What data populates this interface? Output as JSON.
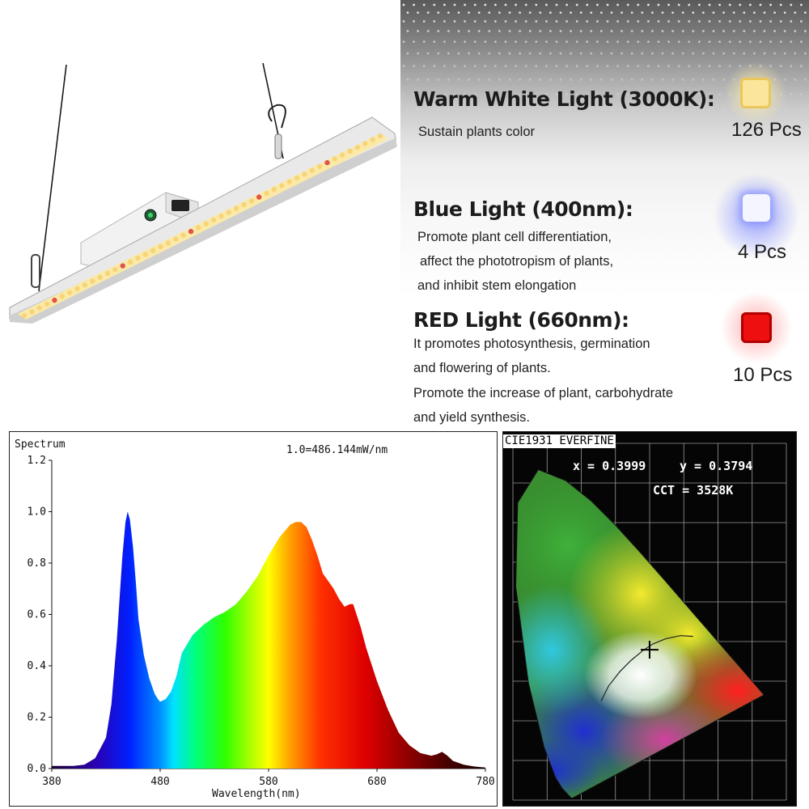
{
  "led_info": {
    "warm": {
      "title": "Warm White Light (3000K):",
      "desc": [
        "Sustain plants color"
      ],
      "count": "126 Pcs",
      "color": "#f7e08a"
    },
    "blue": {
      "title": "Blue Light (400nm):",
      "desc": [
        "Promote plant cell differentiation,",
        "affect the phototropism of plants,",
        "and inhibit stem elongation"
      ],
      "count": "4 Pcs",
      "color": "#e8ecff"
    },
    "red": {
      "title": "RED Light (660nm):",
      "desc": [
        "It promotes photosynthesis, germination",
        "and flowering of plants.",
        "Promote the increase of plant, carbohydrate",
        "and yield synthesis."
      ],
      "count": "10 Pcs",
      "color": "#ee1010"
    }
  },
  "chart_data": [
    {
      "type": "area",
      "title": "Spectrum",
      "annotation": "1.0=486.144mW/nm",
      "xlabel": "Wavelength(nm)",
      "ylabel": "",
      "xlim": [
        380,
        780
      ],
      "ylim": [
        0,
        1.2
      ],
      "x_ticks": [
        "380",
        "480",
        "580",
        "680",
        "780"
      ],
      "y_ticks": [
        "0.0",
        "0.2",
        "0.4",
        "0.6",
        "0.8",
        "1.0",
        "1.2"
      ],
      "fill": "visible-spectrum gradient",
      "grid": false,
      "x": [
        380,
        390,
        400,
        410,
        420,
        430,
        435,
        440,
        445,
        448,
        450,
        452,
        455,
        458,
        460,
        465,
        470,
        475,
        478,
        480,
        485,
        490,
        495,
        500,
        510,
        520,
        530,
        540,
        550,
        560,
        570,
        580,
        590,
        600,
        605,
        610,
        615,
        620,
        625,
        630,
        640,
        645,
        650,
        655,
        658,
        665,
        670,
        680,
        690,
        700,
        710,
        720,
        730,
        735,
        740,
        745,
        750,
        760,
        770,
        780
      ],
      "y": [
        0.01,
        0.01,
        0.01,
        0.015,
        0.04,
        0.12,
        0.25,
        0.5,
        0.82,
        0.96,
        1.0,
        0.97,
        0.86,
        0.7,
        0.58,
        0.44,
        0.35,
        0.29,
        0.27,
        0.26,
        0.27,
        0.3,
        0.36,
        0.45,
        0.52,
        0.56,
        0.59,
        0.61,
        0.64,
        0.69,
        0.75,
        0.83,
        0.9,
        0.95,
        0.96,
        0.96,
        0.94,
        0.89,
        0.83,
        0.76,
        0.7,
        0.66,
        0.63,
        0.64,
        0.64,
        0.55,
        0.47,
        0.34,
        0.23,
        0.14,
        0.09,
        0.06,
        0.05,
        0.055,
        0.065,
        0.05,
        0.03,
        0.015,
        0.008,
        0.004
      ]
    },
    {
      "type": "scatter",
      "title": "CIE1931 EVERFINE",
      "readout": {
        "x_text": "x = 0.3999",
        "y_text": "y = 0.3794",
        "cct_text": "CCT = 3528K"
      },
      "x": [
        0.3999
      ],
      "y": [
        0.3794
      ],
      "xlim": [
        0,
        0.8
      ],
      "ylim": [
        0,
        0.9
      ],
      "grid": true,
      "x_tick_step": 0.1,
      "y_tick_step": 0.1
    }
  ]
}
